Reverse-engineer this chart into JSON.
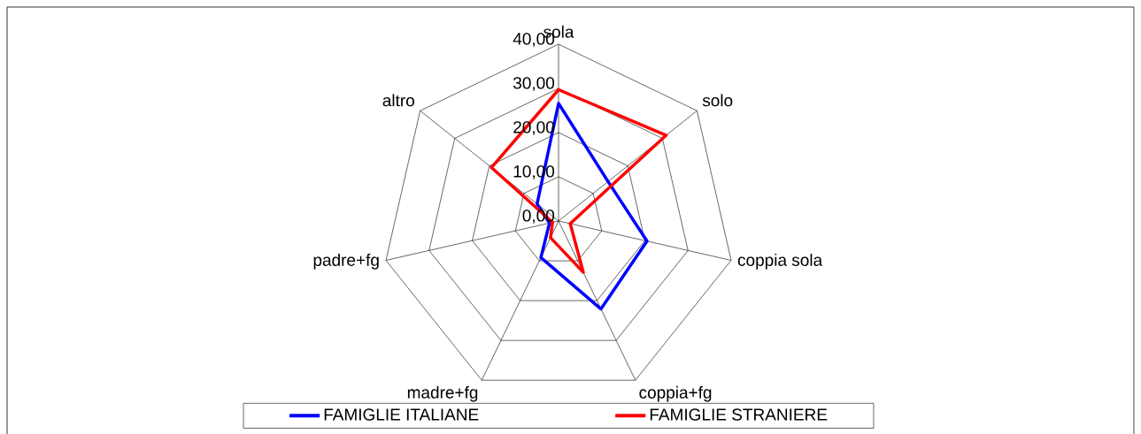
{
  "chart_data": {
    "type": "radar",
    "categories": [
      "sola",
      "solo",
      "coppia sola",
      "coppia+fg",
      "madre+fg",
      "padre+fg",
      "altro"
    ],
    "series": [
      {
        "name": "FAMIGLIE ITALIANE",
        "color": "#0000ff",
        "values": [
          26.6,
          14.3,
          20.5,
          22.1,
          9.2,
          2.1,
          6.2
        ]
      },
      {
        "name": "FAMIGLIE STRANIERE",
        "color": "#ff0000",
        "values": [
          29.7,
          31.1,
          2.7,
          12.9,
          4.2,
          1.4,
          19.4
        ]
      }
    ],
    "ylim": [
      0,
      40
    ],
    "yticks": [
      {
        "value": 0,
        "label": "0,00"
      },
      {
        "value": 10,
        "label": "10,00"
      },
      {
        "value": 20,
        "label": "20,00"
      },
      {
        "value": 30,
        "label": "30,00"
      },
      {
        "value": 40,
        "label": "40,00"
      }
    ],
    "legend": "bottom"
  }
}
